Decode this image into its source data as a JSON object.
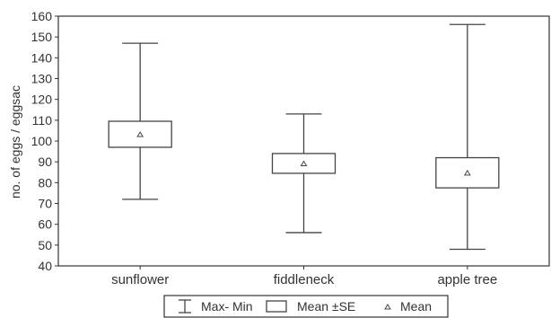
{
  "chart_data": {
    "type": "box",
    "ylabel": "no. of eggs / eggsac",
    "ylim": [
      40,
      160
    ],
    "yticks": [
      40,
      50,
      60,
      70,
      80,
      90,
      100,
      110,
      120,
      130,
      140,
      150,
      160
    ],
    "categories": [
      "sunflower",
      "fiddleneck",
      "apple tree"
    ],
    "boxes": [
      {
        "category": "sunflower",
        "min": 72,
        "max": 147,
        "mean": 103,
        "se_low": 97,
        "se_high": 109.5
      },
      {
        "category": "fiddleneck",
        "min": 56,
        "max": 113,
        "mean": 89,
        "se_low": 84.5,
        "se_high": 94
      },
      {
        "category": "apple tree",
        "min": 48,
        "max": 156,
        "mean": 84.5,
        "se_low": 77.5,
        "se_high": 92
      }
    ],
    "legend": {
      "position": "bottom",
      "entries": [
        "Max- Min",
        "Mean ±SE",
        "Mean"
      ]
    }
  }
}
